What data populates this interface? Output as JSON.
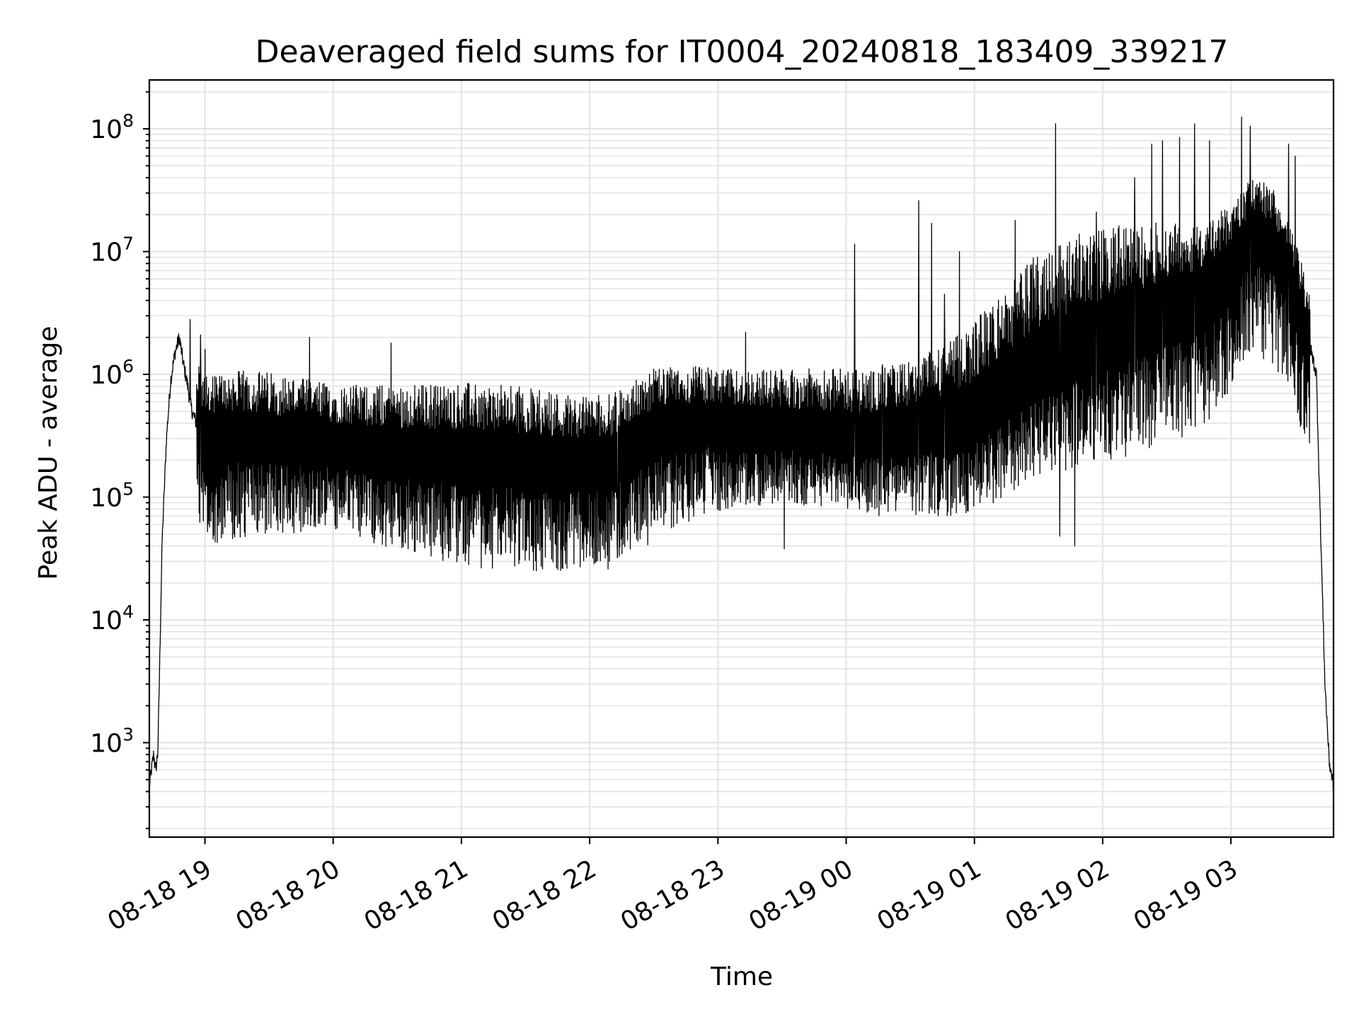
{
  "chart_data": {
    "type": "line",
    "title": "Deaveraged field sums for IT0004_20240818_183409_339217",
    "xlabel": "Time",
    "ylabel": "Peak ADU - average",
    "y_scale": "log",
    "ylim": [
      170,
      250000000
    ],
    "xlim": [
      "2024-08-18 18:34",
      "2024-08-19 03:48"
    ],
    "x_ticks": [
      {
        "t": "2024-08-18 19:00",
        "label": "08-18 19"
      },
      {
        "t": "2024-08-18 20:00",
        "label": "08-18 20"
      },
      {
        "t": "2024-08-18 21:00",
        "label": "08-18 21"
      },
      {
        "t": "2024-08-18 22:00",
        "label": "08-18 22"
      },
      {
        "t": "2024-08-18 23:00",
        "label": "08-18 23"
      },
      {
        "t": "2024-08-19 00:00",
        "label": "08-19 00"
      },
      {
        "t": "2024-08-19 01:00",
        "label": "08-19 01"
      },
      {
        "t": "2024-08-19 02:00",
        "label": "08-19 02"
      },
      {
        "t": "2024-08-19 03:00",
        "label": "08-19 03"
      }
    ],
    "y_ticks": [
      {
        "value": 1000,
        "base": "10",
        "exp": "3"
      },
      {
        "value": 10000,
        "base": "10",
        "exp": "4"
      },
      {
        "value": 100000,
        "base": "10",
        "exp": "5"
      },
      {
        "value": 1000000,
        "base": "10",
        "exp": "6"
      },
      {
        "value": 10000000,
        "base": "10",
        "exp": "7"
      },
      {
        "value": 100000000,
        "base": "10",
        "exp": "8"
      }
    ],
    "grid": true,
    "line_color": "#000000",
    "series": [
      {
        "x": [
          "2024-08-18 18:34",
          "2024-08-18 18:36",
          "2024-08-18 18:37",
          "2024-08-18 18:38",
          "2024-08-18 18:40",
          "2024-08-18 18:42",
          "2024-08-18 18:44",
          "2024-08-18 18:46",
          "2024-08-18 18:48",
          "2024-08-18 18:50",
          "2024-08-18 18:52",
          "2024-08-18 18:53",
          "2024-08-18 18:54",
          "2024-08-18 18:56",
          "2024-08-18 18:58",
          "2024-08-18 19:00",
          "2024-08-18 19:10",
          "2024-08-18 19:30",
          "2024-08-18 19:50",
          "2024-08-18 20:10",
          "2024-08-18 20:30",
          "2024-08-18 20:50",
          "2024-08-18 21:10",
          "2024-08-18 21:30",
          "2024-08-18 21:50",
          "2024-08-18 22:10",
          "2024-08-18 22:30",
          "2024-08-18 22:50",
          "2024-08-18 23:10",
          "2024-08-18 23:30",
          "2024-08-18 23:50",
          "2024-08-19 00:10",
          "2024-08-19 00:30",
          "2024-08-19 00:50",
          "2024-08-19 01:10",
          "2024-08-19 01:30",
          "2024-08-19 01:50",
          "2024-08-19 02:10",
          "2024-08-19 02:30",
          "2024-08-19 02:50",
          "2024-08-19 03:00",
          "2024-08-19 03:10",
          "2024-08-19 03:20",
          "2024-08-19 03:30",
          "2024-08-19 03:36",
          "2024-08-19 03:40",
          "2024-08-19 03:42",
          "2024-08-19 03:44",
          "2024-08-19 03:46",
          "2024-08-19 03:48"
        ],
        "y": [
          450,
          800,
          600,
          850,
          45000,
          300000,
          900000,
          1500000,
          2000000,
          1200000,
          800000,
          600000,
          500000,
          400000,
          350000,
          300000,
          320000,
          300000,
          280000,
          250000,
          230000,
          220000,
          210000,
          200000,
          190000,
          200000,
          350000,
          400000,
          380000,
          350000,
          330000,
          300000,
          330000,
          380000,
          600000,
          1100000,
          1600000,
          2200000,
          3200000,
          4500000,
          8000000,
          15000000,
          12000000,
          5000000,
          2000000,
          1000000,
          50000,
          3000,
          700,
          450
        ]
      }
    ],
    "noise_band": {
      "decades_low": [
        -0.9,
        -0.8,
        -0.7,
        -0.8,
        -0.9,
        -0.9,
        -0.9,
        -0.9,
        -0.7,
        -0.6,
        -0.6,
        -0.7,
        -0.8,
        -0.9,
        -1.0,
        -1.1,
        -1.0,
        -1.0
      ],
      "decades_high": [
        0.5,
        0.55,
        0.5,
        0.55,
        0.6,
        0.6,
        0.55,
        0.5,
        0.45,
        0.5,
        0.55,
        0.6,
        0.8,
        1.0,
        0.9,
        0.7,
        0.45,
        0.4
      ]
    },
    "spikes": [
      {
        "t": "2024-08-18 18:53",
        "y": 2800000
      },
      {
        "t": "2024-08-18 18:58",
        "y": 2100000
      },
      {
        "t": "2024-08-18 19:00",
        "y": 1600000
      },
      {
        "t": "2024-08-18 19:49",
        "y": 2000000
      },
      {
        "t": "2024-08-18 20:27",
        "y": 1800000
      },
      {
        "t": "2024-08-18 22:13",
        "y": 32000
      },
      {
        "t": "2024-08-18 23:13",
        "y": 2200000
      },
      {
        "t": "2024-08-18 23:31",
        "y": 38000
      },
      {
        "t": "2024-08-19 00:04",
        "y": 11500000
      },
      {
        "t": "2024-08-19 00:17",
        "y": 1200000
      },
      {
        "t": "2024-08-19 00:34",
        "y": 26000000
      },
      {
        "t": "2024-08-19 00:40",
        "y": 17000000
      },
      {
        "t": "2024-08-19 00:46",
        "y": 4500000
      },
      {
        "t": "2024-08-19 00:53",
        "y": 10000000
      },
      {
        "t": "2024-08-19 01:19",
        "y": 18000000
      },
      {
        "t": "2024-08-19 01:38",
        "y": 110000000
      },
      {
        "t": "2024-08-19 01:40",
        "y": 48000
      },
      {
        "t": "2024-08-19 01:47",
        "y": 40000
      },
      {
        "t": "2024-08-19 01:57",
        "y": 21000000
      },
      {
        "t": "2024-08-19 02:15",
        "y": 40000000
      },
      {
        "t": "2024-08-19 02:23",
        "y": 75000000
      },
      {
        "t": "2024-08-19 02:28",
        "y": 80000000
      },
      {
        "t": "2024-08-19 02:36",
        "y": 85000000
      },
      {
        "t": "2024-08-19 02:43",
        "y": 110000000
      },
      {
        "t": "2024-08-19 02:50",
        "y": 80000000
      },
      {
        "t": "2024-08-19 03:05",
        "y": 125000000
      },
      {
        "t": "2024-08-19 03:09",
        "y": 105000000
      },
      {
        "t": "2024-08-19 03:27",
        "y": 75000000
      },
      {
        "t": "2024-08-19 03:30",
        "y": 60000000
      }
    ]
  }
}
